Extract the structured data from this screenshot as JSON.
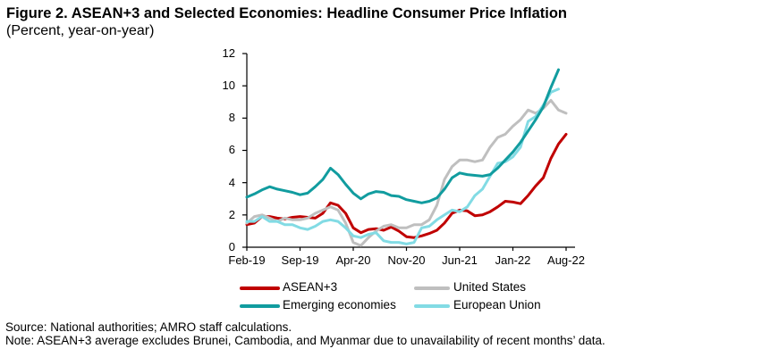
{
  "figure": {
    "title": "Figure 2. ASEAN+3 and Selected Economies: Headline Consumer Price Inflation",
    "subtitle": "(Percent, year-on-year)"
  },
  "source": "Source: National authorities; AMRO staff calculations.",
  "note": "Note: ASEAN+3 average excludes Brunei, Cambodia, and Myanmar due to unavailability of recent months’ data.",
  "colors": {
    "asean3_red": "#c00000",
    "united_states_gray": "#bfbfbf",
    "emerging_teal": "#119c9f",
    "european_union_cyan": "#82dbe4",
    "axis_black": "#000000"
  },
  "legend": [
    {
      "label": "ASEAN+3",
      "color": "#c00000"
    },
    {
      "label": "United States",
      "color": "#bfbfbf"
    },
    {
      "label": "Emerging economies",
      "color": "#119c9f"
    },
    {
      "label": "European Union",
      "color": "#82dbe4"
    }
  ],
  "chart_data": {
    "type": "line",
    "title": "Figure 2. ASEAN+3 and Selected Economies: Headline Consumer Price Inflation",
    "ylabel": "Percent, year-on-year",
    "xlabel": "",
    "grid": false,
    "legend_position": "bottom",
    "ylim": [
      0,
      12
    ],
    "y_ticks": [
      0,
      2,
      4,
      6,
      8,
      10,
      12
    ],
    "x_tick_labels": [
      "Feb-19",
      "Sep-19",
      "Apr-20",
      "Nov-20",
      "Jun-21",
      "Jan-22",
      "Aug-22"
    ],
    "x_tick_positions": [
      0,
      7,
      14,
      21,
      28,
      35,
      42
    ],
    "x_categories": [
      "Feb-19",
      "Mar-19",
      "Apr-19",
      "May-19",
      "Jun-19",
      "Jul-19",
      "Aug-19",
      "Sep-19",
      "Oct-19",
      "Nov-19",
      "Dec-19",
      "Jan-20",
      "Feb-20",
      "Mar-20",
      "Apr-20",
      "May-20",
      "Jun-20",
      "Jul-20",
      "Aug-20",
      "Sep-20",
      "Oct-20",
      "Nov-20",
      "Dec-20",
      "Jan-21",
      "Feb-21",
      "Mar-21",
      "Apr-21",
      "May-21",
      "Jun-21",
      "Jul-21",
      "Aug-21",
      "Sep-21",
      "Oct-21",
      "Nov-21",
      "Dec-21",
      "Jan-22",
      "Feb-22",
      "Mar-22",
      "Apr-22",
      "May-22",
      "Jun-22",
      "Jul-22",
      "Aug-22"
    ],
    "series": [
      {
        "name": "ASEAN+3",
        "color": "#c00000",
        "values": [
          1.4,
          1.5,
          1.9,
          1.9,
          1.8,
          1.75,
          1.85,
          1.9,
          1.85,
          1.8,
          2.1,
          2.75,
          2.6,
          2.1,
          1.2,
          0.9,
          1.1,
          1.15,
          1.05,
          1.25,
          1.0,
          0.65,
          0.6,
          0.7,
          0.85,
          1.05,
          1.5,
          2.1,
          2.3,
          2.25,
          1.95,
          2.0,
          2.2,
          2.5,
          2.85,
          2.8,
          2.7,
          3.2,
          3.8,
          4.3,
          5.5,
          6.4,
          7.0
        ]
      },
      {
        "name": "United States",
        "color": "#bfbfbf",
        "values": [
          1.5,
          1.9,
          2.0,
          1.8,
          1.6,
          1.8,
          1.7,
          1.7,
          1.8,
          2.1,
          2.3,
          2.5,
          2.3,
          1.5,
          0.3,
          0.1,
          0.6,
          1.0,
          1.3,
          1.4,
          1.2,
          1.2,
          1.4,
          1.4,
          1.7,
          2.6,
          4.2,
          5.0,
          5.4,
          5.4,
          5.3,
          5.4,
          6.2,
          6.8,
          7.0,
          7.5,
          7.9,
          8.5,
          8.3,
          8.6,
          9.1,
          8.5,
          8.3
        ]
      },
      {
        "name": "European Union",
        "color": "#82dbe4",
        "values": [
          1.6,
          1.6,
          1.9,
          1.6,
          1.6,
          1.4,
          1.4,
          1.2,
          1.1,
          1.3,
          1.6,
          1.7,
          1.6,
          1.2,
          0.7,
          0.6,
          0.8,
          0.9,
          0.4,
          0.3,
          0.3,
          0.2,
          0.3,
          1.2,
          1.3,
          1.7,
          2.0,
          2.3,
          2.2,
          2.5,
          3.2,
          3.6,
          4.4,
          5.2,
          5.3,
          5.6,
          6.2,
          7.8,
          8.1,
          8.8,
          9.6,
          9.8
        ]
      },
      {
        "name": "Emerging economies",
        "color": "#119c9f",
        "values": [
          3.1,
          3.3,
          3.55,
          3.75,
          3.6,
          3.5,
          3.4,
          3.25,
          3.35,
          3.75,
          4.2,
          4.9,
          4.5,
          3.9,
          3.35,
          3.0,
          3.3,
          3.45,
          3.4,
          3.2,
          3.15,
          2.95,
          2.85,
          2.75,
          2.85,
          3.05,
          3.6,
          4.3,
          4.6,
          4.5,
          4.45,
          4.4,
          4.5,
          4.9,
          5.4,
          5.9,
          6.5,
          7.2,
          7.9,
          8.7,
          9.9,
          11.0
        ]
      }
    ]
  }
}
